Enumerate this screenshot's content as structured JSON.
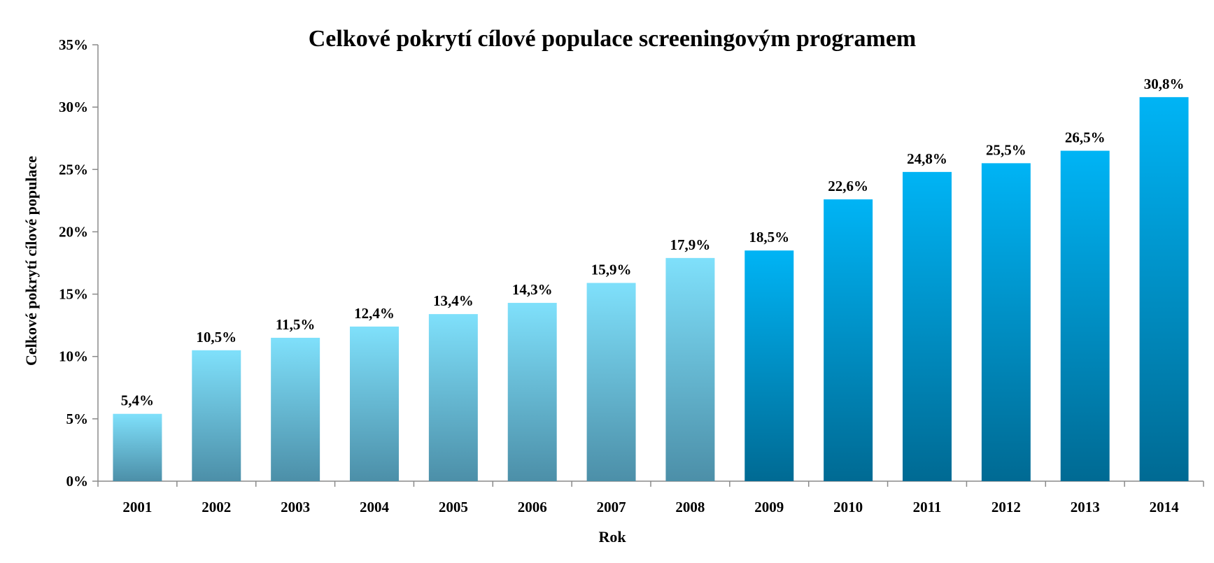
{
  "chart_data": {
    "type": "bar",
    "title": "Celkové pokrytí cílové populace screeningovým programem",
    "xlabel": "Rok",
    "ylabel": "Celkové pokrytí cílové populace",
    "categories": [
      "2001",
      "2002",
      "2003",
      "2004",
      "2005",
      "2006",
      "2007",
      "2008",
      "2009",
      "2010",
      "2011",
      "2012",
      "2013",
      "2014"
    ],
    "values": [
      5.4,
      10.5,
      11.5,
      12.4,
      13.4,
      14.3,
      15.9,
      17.9,
      18.5,
      22.6,
      24.8,
      25.5,
      26.5,
      30.8
    ],
    "data_labels": [
      "5,4%",
      "10,5%",
      "11,5%",
      "12,4%",
      "13,4%",
      "14,3%",
      "15,9%",
      "17,9%",
      "18,5%",
      "22,6%",
      "24,8%",
      "25,5%",
      "26,5%",
      "30,8%"
    ],
    "ylim": [
      0,
      35
    ],
    "yticks": [
      0,
      5,
      10,
      15,
      20,
      25,
      30,
      35
    ],
    "ytick_labels": [
      "0%",
      "5%",
      "10%",
      "15%",
      "20%",
      "25%",
      "30%",
      "35%"
    ],
    "grid": false,
    "legend": "none",
    "colors": {
      "light_top": "#7fe0fb",
      "light_bottom": "#4c8fa8",
      "dark_top": "#00b4f5",
      "dark_bottom": "#006a93",
      "axis": "#8a8a8a"
    }
  }
}
